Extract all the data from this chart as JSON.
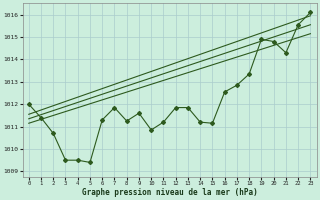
{
  "xlabel": "Graphe pression niveau de la mer (hPa)",
  "bg_color": "#cceedd",
  "grid_color": "#aacccc",
  "line_color": "#2d5a1e",
  "ylim": [
    1008.75,
    1016.5
  ],
  "xlim": [
    -0.5,
    23.5
  ],
  "yticks": [
    1009,
    1010,
    1011,
    1012,
    1013,
    1014,
    1015,
    1016
  ],
  "xticks": [
    0,
    1,
    2,
    3,
    4,
    5,
    6,
    7,
    8,
    9,
    10,
    11,
    12,
    13,
    14,
    15,
    16,
    17,
    18,
    19,
    20,
    21,
    22,
    23
  ],
  "pressure": [
    1012.0,
    1011.4,
    1010.7,
    1009.5,
    1009.5,
    1009.4,
    1011.3,
    1011.85,
    1011.25,
    1011.6,
    1010.85,
    1011.2,
    1011.85,
    1011.85,
    1011.2,
    1011.15,
    1012.55,
    1012.85,
    1013.35,
    1014.9,
    1014.8,
    1014.3,
    1015.55,
    1016.1
  ],
  "trend1_x": [
    0,
    23
  ],
  "trend1_y": [
    1011.55,
    1015.95
  ],
  "trend2_x": [
    0,
    23
  ],
  "trend2_y": [
    1011.35,
    1015.55
  ],
  "trend3_x": [
    0,
    23
  ],
  "trend3_y": [
    1011.15,
    1015.15
  ]
}
